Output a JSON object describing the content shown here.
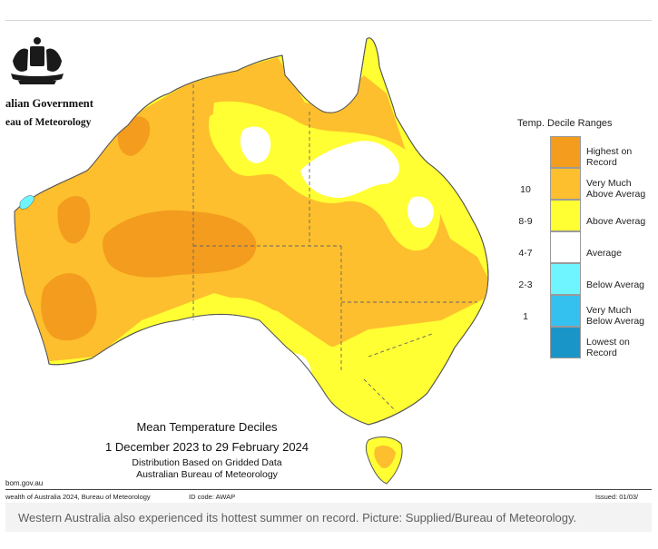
{
  "header": {
    "gov_line1": "alian Government",
    "gov_line2": "eau of Meteorology",
    "crest_icon": "coat-of-arms-icon"
  },
  "legend": {
    "title": "Temp. Decile Ranges",
    "items": [
      {
        "code": "",
        "label_line1": "Highest on",
        "label_line2": "Record",
        "color": "#f39c1e"
      },
      {
        "code": "10",
        "label_line1": "Very Much",
        "label_line2": "Above Averag",
        "color": "#fdbf2d"
      },
      {
        "code": "8-9",
        "label_line1": "Above Averag",
        "label_line2": "",
        "color": "#ffff33"
      },
      {
        "code": "4-7",
        "label_line1": "Average",
        "label_line2": "",
        "color": "#ffffff"
      },
      {
        "code": "2-3",
        "label_line1": "Below Averag",
        "label_line2": "",
        "color": "#6ff5ff"
      },
      {
        "code": "1",
        "label_line1": "Very Much",
        "label_line2": "Below Averag",
        "color": "#35c1f0"
      },
      {
        "code": "",
        "label_line1": "Lowest on",
        "label_line2": "Record",
        "color": "#1a95c8"
      }
    ]
  },
  "map_title": {
    "line1": "Mean Temperature Deciles",
    "line2": "1 December 2023 to 29 February 2024",
    "line3": "Distribution Based on Gridded Data",
    "line4": "Australian Bureau of Meteorology"
  },
  "footer": {
    "url": "bom.gov.au",
    "copyright": "wealth of Australia 2024, Bureau of Meteorology",
    "id_code": "ID code: AWAP",
    "issued": "Issued: 01/03/"
  },
  "caption": "Western Australia also experienced its hottest summer on record. Picture: Supplied/Bureau of Meteorology."
}
